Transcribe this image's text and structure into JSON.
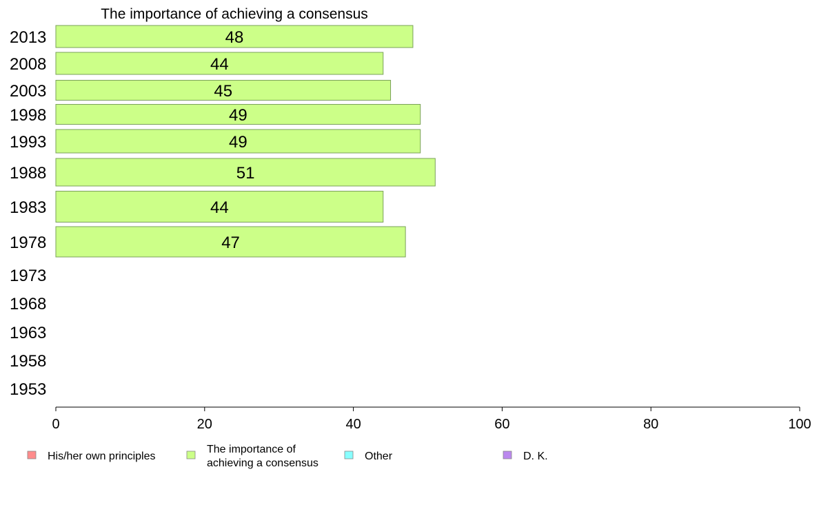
{
  "chart_data": {
    "type": "bar",
    "orientation": "horizontal",
    "title": "The importance of achieving a consensus",
    "categories": [
      "2013",
      "2008",
      "2003",
      "1998",
      "1993",
      "1988",
      "1983",
      "1978",
      "1973",
      "1968",
      "1963",
      "1958",
      "1953"
    ],
    "series": [
      {
        "name": "The importance of achieving a consensus",
        "color": "#ccff88",
        "values": [
          48,
          44,
          45,
          49,
          49,
          51,
          44,
          47,
          null,
          null,
          null,
          null,
          null
        ]
      }
    ],
    "xlim": [
      0,
      100
    ],
    "xticks": [
      "0",
      "20",
      "40",
      "60",
      "80",
      "100"
    ],
    "grid": false,
    "legend_position": "bottom"
  },
  "legend": [
    {
      "lines": [
        "His/her own principles"
      ],
      "color": "#ff8c8c"
    },
    {
      "lines": [
        "The importance of",
        "achieving a consensus"
      ],
      "color": "#ccff88"
    },
    {
      "lines": [
        "Other"
      ],
      "color": "#88ffff"
    },
    {
      "lines": [
        "D. K."
      ],
      "color": "#bb88ee"
    }
  ]
}
